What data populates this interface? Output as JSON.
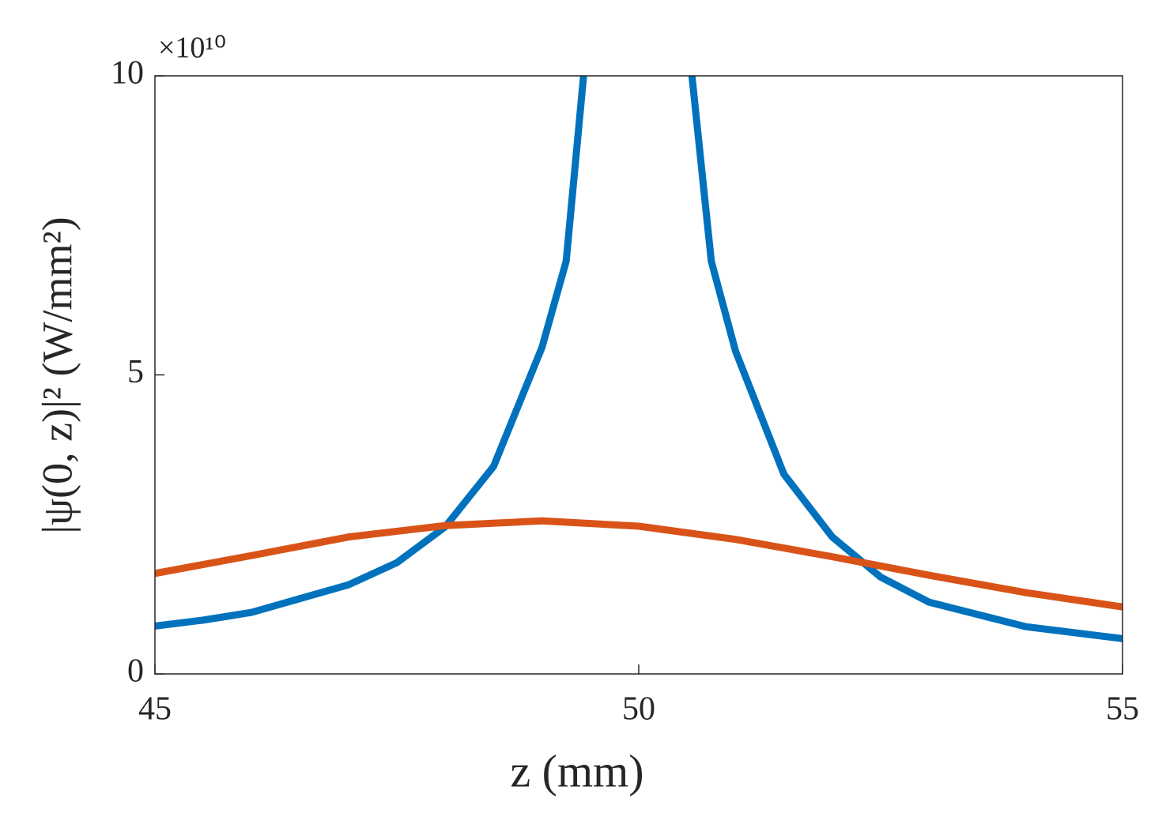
{
  "chart_data": {
    "type": "line",
    "xlabel": "z (mm)",
    "ylabel": "|ψ(0, z)|² (W/mm²)",
    "y_multiplier": "×10¹⁰",
    "xlim": [
      45,
      55
    ],
    "xticks": [
      45,
      50,
      55
    ],
    "ylim": [
      0,
      10
    ],
    "yticks": [
      0,
      5,
      10
    ],
    "series": [
      {
        "color": "#0072bd",
        "x": [
          45,
          45.5,
          46,
          47,
          47.5,
          48,
          48.5,
          49,
          49.25,
          49.43,
          50,
          50.55,
          50.75,
          51,
          51.5,
          52,
          52.5,
          53,
          54,
          55
        ],
        "values": [
          0.8,
          0.9,
          1.03,
          1.49,
          1.86,
          2.46,
          3.47,
          5.46,
          6.9,
          10,
          null,
          10,
          6.9,
          5.4,
          3.34,
          2.29,
          1.62,
          1.2,
          0.79,
          0.59
        ]
      },
      {
        "color": "#d95319",
        "x": [
          45,
          46,
          47,
          48,
          49,
          50,
          51,
          52,
          53,
          54,
          55
        ],
        "values": [
          1.68,
          1.98,
          2.29,
          2.48,
          2.56,
          2.47,
          2.25,
          1.96,
          1.65,
          1.36,
          1.12
        ]
      }
    ]
  }
}
